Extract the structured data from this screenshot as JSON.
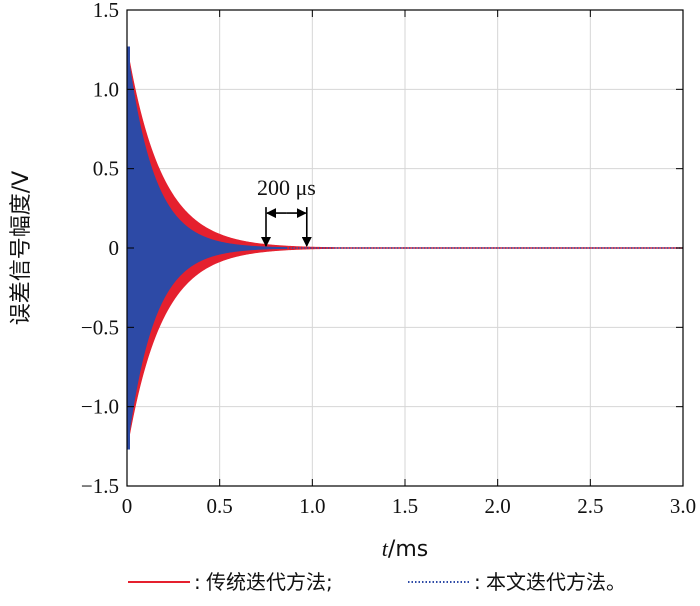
{
  "chart_data": {
    "type": "line",
    "xlabel_italic": "t",
    "xlabel_unit": "/ms",
    "ylabel": "误差信号幅度/V",
    "xlim": [
      0,
      3.0
    ],
    "ylim": [
      -1.5,
      1.5
    ],
    "x_ticks": [
      "0",
      "0.5",
      "1.0",
      "1.5",
      "2.0",
      "2.5",
      "3.0"
    ],
    "y_ticks": [
      "1.5",
      "1.0",
      "0.5",
      "0",
      "−0.5",
      "−1.0",
      "−1.5"
    ],
    "grid": true,
    "series": [
      {
        "name": "传统迭代方法;",
        "color": "#e5202e",
        "line_style": "solid",
        "initial_amplitude": 1.27,
        "settle_time_ms": 0.97
      },
      {
        "name": "本文迭代方法。",
        "color": "#2d4aa6",
        "line_style": "dotted",
        "initial_amplitude": 1.27,
        "settle_time_ms": 0.75
      }
    ],
    "annotation": {
      "text": "200 μs",
      "x_start": 0.75,
      "x_end": 0.97,
      "y": 0.22
    },
    "legend_prefix": ":",
    "legend_placement": "bottom"
  }
}
